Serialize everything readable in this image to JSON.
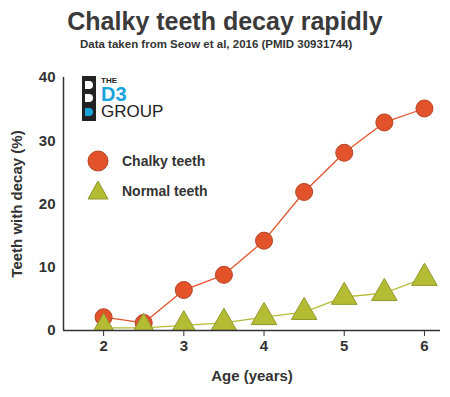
{
  "chart_data": {
    "type": "line",
    "title": "Chalky teeth decay rapidly",
    "subtitle": "Data taken from Seow et al, 2016 (PMID 30931744)",
    "annotations": [
      "THE",
      "D3",
      "GROUP"
    ],
    "x_label": "Age (years)",
    "y_label": "Teeth with decay (%)",
    "x": [
      2,
      2.5,
      3,
      3.5,
      4,
      4.5,
      5,
      5.5,
      6
    ],
    "series": [
      {
        "name": "Chalky teeth",
        "color": "#e2522b",
        "marker": "circle",
        "values": [
          2.1,
          1.2,
          6.4,
          8.8,
          14.2,
          21.9,
          28.1,
          32.9,
          35.1
        ]
      },
      {
        "name": "Normal teeth",
        "color": "#b4bc34",
        "marker": "triangle",
        "values": [
          0.4,
          0.4,
          0.8,
          1.2,
          2.1,
          2.9,
          5.3,
          5.9,
          8.3
        ]
      }
    ],
    "xlim": [
      1.5,
      6.2
    ],
    "xticks": [
      2,
      3,
      4,
      5,
      6
    ],
    "ylim": [
      0,
      40
    ],
    "yticks": [
      0,
      10,
      20,
      30,
      40
    ],
    "grid": false,
    "legend": "top-left"
  }
}
